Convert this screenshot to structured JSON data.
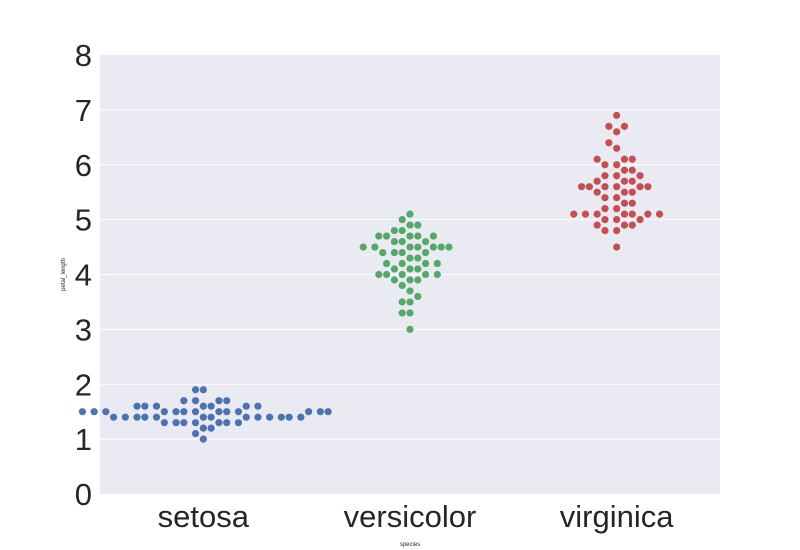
{
  "chart_data": {
    "type": "scatter",
    "subtype": "swarm",
    "xlabel": "species",
    "ylabel": "petal_length",
    "ylim": [
      0,
      8
    ],
    "yticks": [
      0,
      1,
      2,
      3,
      4,
      5,
      6,
      7,
      8
    ],
    "ytick_labels": [
      "0",
      "1",
      "2",
      "3",
      "4",
      "5",
      "6",
      "7",
      "8"
    ],
    "categories": [
      "setosa",
      "versicolor",
      "virginica"
    ],
    "grid": "horizontal",
    "style": {
      "background": "#eaeaf2",
      "grid_color": "#ffffff",
      "text_color": "#262626"
    },
    "series": [
      {
        "category": "setosa",
        "color": "#4c72b0",
        "values": [
          1.4,
          1.4,
          1.3,
          1.5,
          1.4,
          1.7,
          1.4,
          1.5,
          1.4,
          1.5,
          1.5,
          1.6,
          1.4,
          1.1,
          1.2,
          1.5,
          1.3,
          1.4,
          1.7,
          1.5,
          1.7,
          1.5,
          1.0,
          1.7,
          1.9,
          1.6,
          1.6,
          1.5,
          1.4,
          1.6,
          1.6,
          1.5,
          1.5,
          1.4,
          1.5,
          1.2,
          1.3,
          1.4,
          1.3,
          1.5,
          1.3,
          1.3,
          1.3,
          1.6,
          1.9,
          1.4,
          1.6,
          1.4,
          1.5,
          1.4
        ]
      },
      {
        "category": "versicolor",
        "color": "#55a868",
        "values": [
          4.7,
          4.5,
          4.9,
          4.0,
          4.6,
          4.5,
          4.7,
          3.3,
          4.6,
          3.9,
          3.5,
          4.2,
          4.0,
          4.7,
          3.6,
          4.4,
          4.5,
          4.1,
          4.5,
          3.9,
          4.8,
          4.0,
          4.9,
          4.7,
          4.3,
          4.4,
          4.8,
          5.0,
          4.5,
          3.5,
          3.8,
          3.7,
          3.9,
          5.1,
          4.5,
          4.5,
          4.7,
          4.4,
          4.1,
          4.0,
          4.4,
          4.6,
          4.0,
          3.3,
          4.2,
          4.2,
          4.2,
          4.3,
          3.0,
          4.1
        ]
      },
      {
        "category": "virginica",
        "color": "#c44e52",
        "values": [
          6.0,
          5.1,
          5.9,
          5.6,
          5.8,
          6.6,
          4.5,
          6.3,
          5.8,
          6.1,
          5.1,
          5.3,
          5.5,
          5.0,
          5.1,
          5.3,
          5.5,
          6.7,
          6.9,
          5.0,
          5.7,
          4.9,
          6.7,
          4.9,
          5.7,
          6.0,
          4.8,
          4.9,
          5.6,
          5.8,
          6.1,
          6.4,
          5.6,
          5.1,
          5.6,
          6.1,
          5.6,
          5.5,
          4.8,
          5.4,
          5.6,
          5.1,
          5.1,
          5.9,
          5.7,
          5.2,
          5.0,
          5.2,
          5.4,
          5.1
        ]
      }
    ]
  }
}
